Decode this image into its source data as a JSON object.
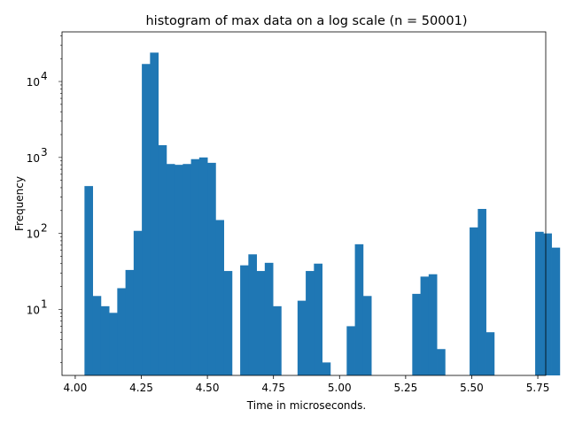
{
  "chart_data": {
    "type": "bar",
    "title": "histogram of max data on a log scale (n = 50001)",
    "xlabel": "Time in microseconds.",
    "ylabel": "Frequency",
    "yscale": "log",
    "xlim": [
      3.95,
      5.78
    ],
    "ylim": [
      1.35,
      45000
    ],
    "xticks": [
      4.0,
      4.25,
      4.5,
      4.75,
      5.0,
      5.25,
      5.5,
      5.75
    ],
    "xtick_labels": [
      "4.00",
      "4.25",
      "4.50",
      "4.75",
      "5.00",
      "5.25",
      "5.50",
      "5.75"
    ],
    "yticks": [
      10,
      100,
      1000,
      10000
    ],
    "ytick_bases": [
      "10",
      "10",
      "10",
      "10"
    ],
    "ytick_exponents": [
      "1",
      "2",
      "3",
      "4"
    ],
    "bar_color": "#1f77b4",
    "bin_start": 4.035,
    "bin_width": 0.031,
    "values": [
      420,
      15,
      11,
      9,
      19,
      33,
      108,
      17000,
      24000,
      1450,
      820,
      800,
      820,
      950,
      1000,
      850,
      150,
      32,
      0,
      38,
      53,
      32,
      41,
      11,
      0,
      0,
      13,
      32,
      40,
      2,
      0,
      0,
      6,
      72,
      15,
      0,
      0,
      0,
      0,
      0,
      16,
      27,
      29,
      3,
      0,
      0,
      0,
      120,
      210,
      5,
      0,
      0,
      0,
      0,
      0,
      105,
      100,
      65
    ]
  }
}
